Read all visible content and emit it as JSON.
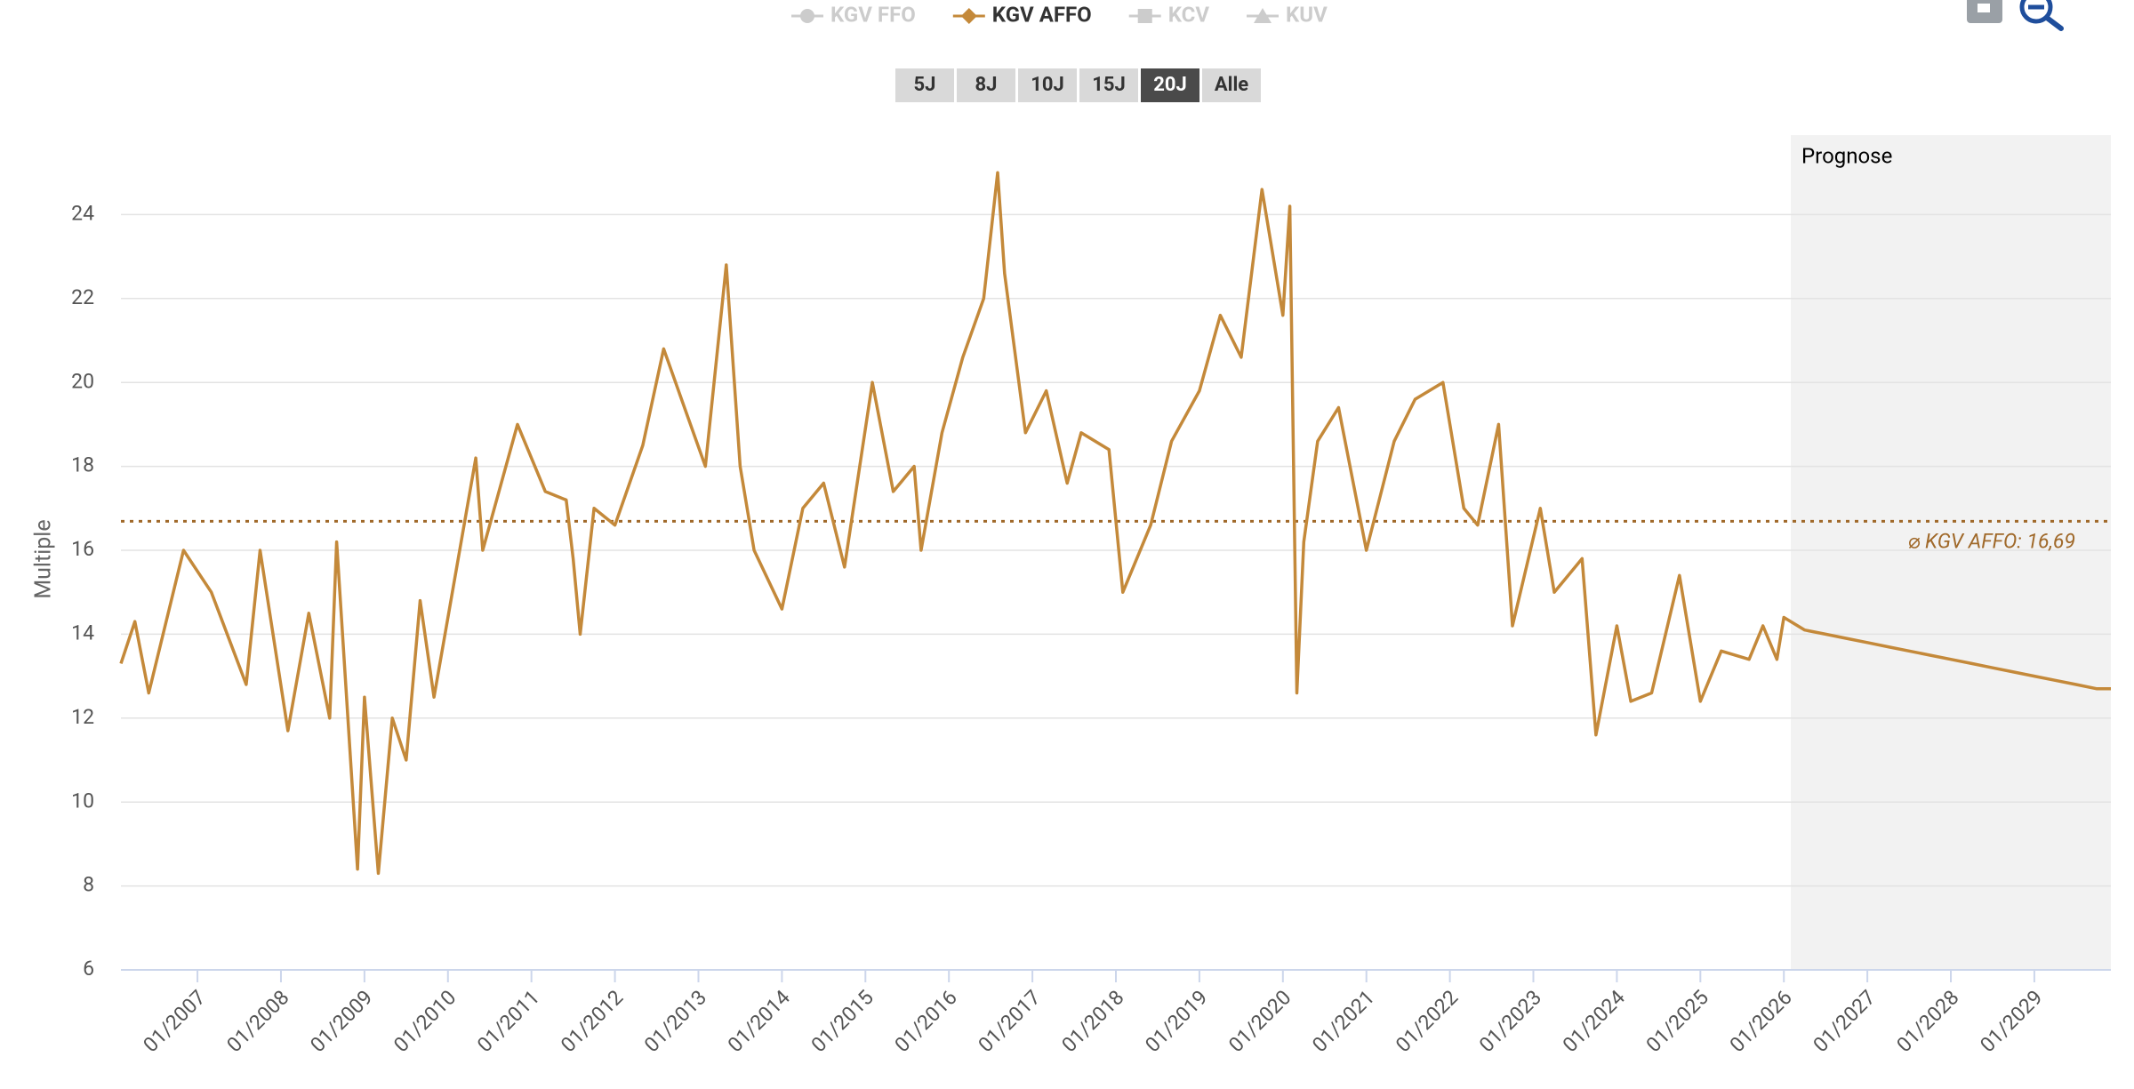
{
  "chart_data": {
    "type": "line",
    "y_label": "Multiple",
    "legend": [
      {
        "name": "KGV FFO",
        "color": "#cccccc",
        "marker": "circle",
        "active": false
      },
      {
        "name": "KGV AFFO",
        "color": "#c4893a",
        "marker": "diamond",
        "active": true
      },
      {
        "name": "KCV",
        "color": "#cccccc",
        "marker": "square",
        "active": false
      },
      {
        "name": "KUV",
        "color": "#cccccc",
        "marker": "triangle",
        "active": false
      }
    ],
    "ranges": [
      "5J",
      "8J",
      "10J",
      "15J",
      "20J",
      "Alle"
    ],
    "selected_range": "20J",
    "forecast": {
      "start": "2026-02",
      "label": "Prognose"
    },
    "average": {
      "value": 16.69,
      "label": "⌀ KGV AFFO: 16,69",
      "color": "#a0692a"
    },
    "grid": true,
    "xlim": [
      "2006-02",
      "2029-12"
    ],
    "ylim": [
      6,
      26
    ],
    "yticks": [
      6,
      8,
      10,
      12,
      14,
      16,
      18,
      20,
      22,
      24
    ],
    "xticks": [
      {
        "value": "2007-01",
        "label": "01/2007"
      },
      {
        "value": "2008-01",
        "label": "01/2008"
      },
      {
        "value": "2009-01",
        "label": "01/2009"
      },
      {
        "value": "2010-01",
        "label": "01/2010"
      },
      {
        "value": "2011-01",
        "label": "01/2011"
      },
      {
        "value": "2012-01",
        "label": "01/2012"
      },
      {
        "value": "2013-01",
        "label": "01/2013"
      },
      {
        "value": "2014-01",
        "label": "01/2014"
      },
      {
        "value": "2015-01",
        "label": "01/2015"
      },
      {
        "value": "2016-01",
        "label": "01/2016"
      },
      {
        "value": "2017-01",
        "label": "01/2017"
      },
      {
        "value": "2018-01",
        "label": "01/2018"
      },
      {
        "value": "2019-01",
        "label": "01/2019"
      },
      {
        "value": "2020-01",
        "label": "01/2020"
      },
      {
        "value": "2021-01",
        "label": "01/2021"
      },
      {
        "value": "2022-01",
        "label": "01/2022"
      },
      {
        "value": "2023-01",
        "label": "01/2023"
      },
      {
        "value": "2024-01",
        "label": "01/2024"
      },
      {
        "value": "2025-01",
        "label": "01/2025"
      },
      {
        "value": "2026-01",
        "label": "01/2026"
      },
      {
        "value": "2027-01",
        "label": "01/2027"
      },
      {
        "value": "2028-01",
        "label": "01/2028"
      },
      {
        "value": "2029-01",
        "label": "01/2029"
      }
    ],
    "x": [
      "2006-02",
      "2006-04",
      "2006-06",
      "2006-11",
      "2007-03",
      "2007-08",
      "2007-10",
      "2008-02",
      "2008-05",
      "2008-08",
      "2008-09",
      "2008-12",
      "2009-01",
      "2009-03",
      "2009-05",
      "2009-07",
      "2009-09",
      "2009-11",
      "2010-01",
      "2010-05",
      "2010-06",
      "2010-11",
      "2011-03",
      "2011-06",
      "2011-07",
      "2011-08",
      "2011-10",
      "2012-01",
      "2012-05",
      "2012-08",
      "2012-11",
      "2013-02",
      "2013-05",
      "2013-07",
      "2013-09",
      "2014-01",
      "2014-04",
      "2014-07",
      "2014-10",
      "2015-02",
      "2015-05",
      "2015-08",
      "2015-09",
      "2015-12",
      "2016-03",
      "2016-06",
      "2016-08",
      "2016-09",
      "2016-12",
      "2017-03",
      "2017-06",
      "2017-08",
      "2017-12",
      "2018-02",
      "2018-06",
      "2018-09",
      "2019-01",
      "2019-04",
      "2019-07",
      "2019-10",
      "2020-01",
      "2020-02",
      "2020-03",
      "2020-04",
      "2020-06",
      "2020-09",
      "2021-01",
      "2021-05",
      "2021-08",
      "2021-12",
      "2022-03",
      "2022-05",
      "2022-08",
      "2022-10",
      "2023-02",
      "2023-04",
      "2023-08",
      "2023-10",
      "2024-01",
      "2024-03",
      "2024-06",
      "2024-10",
      "2025-01",
      "2025-04",
      "2025-08",
      "2025-10",
      "2025-12",
      "2026-01",
      "2026-04",
      "2026-07",
      "2026-10",
      "2027-01",
      "2027-04",
      "2027-07",
      "2027-10",
      "2028-01",
      "2028-04",
      "2028-07",
      "2028-10",
      "2029-01",
      "2029-04",
      "2029-07",
      "2029-10",
      "2029-12"
    ],
    "series": [
      {
        "name": "KGV AFFO",
        "color": "#c4893a",
        "values": [
          13.3,
          14.3,
          12.6,
          16.0,
          15.0,
          12.8,
          16.0,
          11.7,
          14.5,
          12.0,
          16.2,
          8.4,
          12.5,
          8.3,
          12.0,
          11.0,
          14.8,
          12.5,
          14.4,
          18.2,
          16.0,
          19.0,
          17.4,
          17.2,
          15.8,
          14.0,
          17.0,
          16.6,
          18.5,
          20.8,
          19.4,
          18.0,
          22.8,
          18.0,
          16.0,
          14.6,
          17.0,
          17.6,
          15.6,
          20.0,
          17.4,
          18.0,
          16.0,
          18.8,
          20.6,
          22.0,
          25.0,
          22.6,
          18.8,
          19.8,
          17.6,
          18.8,
          18.4,
          15.0,
          16.6,
          18.6,
          19.8,
          21.6,
          20.6,
          24.6,
          21.6,
          24.2,
          12.6,
          16.2,
          18.6,
          19.4,
          16.0,
          18.6,
          19.6,
          20.0,
          17.0,
          16.6,
          19.0,
          14.2,
          17.0,
          15.0,
          15.8,
          11.6,
          14.2,
          12.4,
          12.6,
          15.4,
          12.4,
          13.6,
          13.4,
          14.2,
          13.4,
          14.4,
          14.1,
          14.0,
          13.9,
          13.8,
          13.7,
          13.6,
          13.5,
          13.4,
          13.3,
          13.2,
          13.1,
          13.0,
          12.9,
          12.8,
          12.7,
          12.7
        ]
      }
    ]
  }
}
